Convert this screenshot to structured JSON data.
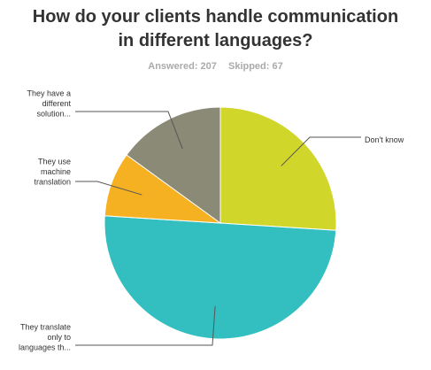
{
  "header": {
    "title_line1": "How do your clients handle communication",
    "title_line2": "in different languages?",
    "answered": "Answered: 207",
    "skipped": "Skipped: 67"
  },
  "colors": [
    "#d1d62a",
    "#33bfbf",
    "#f6b123",
    "#8a8a77"
  ],
  "chart_data": {
    "type": "pie",
    "title": "How do your clients handle communication in different languages?",
    "start_angle_deg": 0,
    "direction": "clockwise",
    "slices": [
      {
        "label": "Don't know",
        "label_lines": [
          "Don't know"
        ],
        "value": 0.26
      },
      {
        "label": "They translate only to languages th...",
        "label_lines": [
          "They translate",
          "only to",
          "languages th..."
        ],
        "value": 0.5
      },
      {
        "label": "They use machine translation",
        "label_lines": [
          "They use",
          "machine",
          "translation"
        ],
        "value": 0.09
      },
      {
        "label": "They have a different solution...",
        "label_lines": [
          "They have a",
          "different",
          "solution..."
        ],
        "value": 0.15
      }
    ]
  }
}
